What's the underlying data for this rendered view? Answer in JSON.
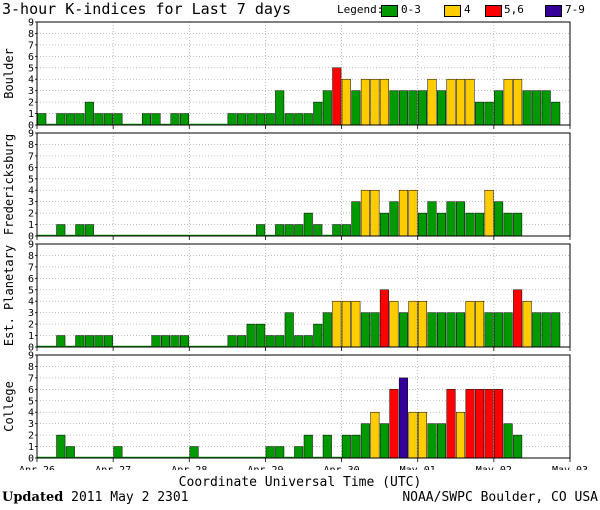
{
  "title": "3-hour K-indices for Last 7 days",
  "legend": {
    "label": "Legend:",
    "items": [
      {
        "label": "0-3",
        "color": "#009900"
      },
      {
        "label": "4",
        "color": "#ffcc00"
      },
      {
        "label": "5,6",
        "color": "#ff0000"
      },
      {
        "label": "7-9",
        "color": "#330099"
      }
    ]
  },
  "footer": {
    "updated_label": "Updated",
    "updated_value": "2011 May  2 2301",
    "source": "NOAA/SWPC Boulder, CO USA"
  },
  "chart_data": {
    "type": "bar",
    "xlabel": "Coordinate Universal Time (UTC)",
    "x_ticks": [
      "Apr 26",
      "Apr 27",
      "Apr 28",
      "Apr 29",
      "Apr 30",
      "May 01",
      "May 02",
      "May 03"
    ],
    "ylim": [
      0,
      9
    ],
    "y_ticks": [
      0,
      1,
      2,
      3,
      4,
      5,
      6,
      7,
      8,
      9
    ],
    "interval_hours": 3,
    "bins": 56,
    "color_scale": [
      {
        "range": "0-3",
        "color": "#009900"
      },
      {
        "range": "4",
        "color": "#ffcc00"
      },
      {
        "range": "5,6",
        "color": "#ff0000"
      },
      {
        "range": "7-9",
        "color": "#330099"
      }
    ],
    "panels": [
      {
        "name": "Boulder",
        "values": [
          1,
          0,
          1,
          1,
          1,
          2,
          1,
          1,
          1,
          0,
          0,
          1,
          1,
          0,
          1,
          1,
          0,
          0,
          0,
          0,
          1,
          1,
          1,
          1,
          1,
          3,
          1,
          1,
          1,
          2,
          3,
          5,
          4,
          3,
          4,
          4,
          4,
          3,
          3,
          3,
          3,
          4,
          3,
          4,
          4,
          4,
          2,
          2,
          3,
          4,
          4,
          3,
          3,
          3,
          2,
          null
        ]
      },
      {
        "name": "Fredericksburg",
        "values": [
          0,
          0,
          1,
          0,
          1,
          1,
          0,
          0,
          0,
          0,
          0,
          0,
          0,
          0,
          0,
          0,
          0,
          0,
          0,
          0,
          0,
          0,
          0,
          1,
          0,
          1,
          1,
          1,
          2,
          1,
          0,
          1,
          1,
          3,
          4,
          4,
          2,
          3,
          4,
          4,
          2,
          3,
          2,
          3,
          3,
          2,
          2,
          4,
          3,
          2,
          2,
          null,
          null,
          null,
          null,
          null
        ]
      },
      {
        "name": "Est. Planetary",
        "values": [
          0,
          0,
          1,
          0,
          1,
          1,
          1,
          1,
          0,
          0,
          0,
          0,
          1,
          1,
          1,
          1,
          0,
          0,
          0,
          0,
          1,
          1,
          2,
          2,
          1,
          1,
          3,
          1,
          1,
          2,
          3,
          4,
          4,
          4,
          3,
          3,
          5,
          4,
          3,
          4,
          4,
          3,
          3,
          3,
          3,
          4,
          4,
          3,
          3,
          3,
          5,
          4,
          3,
          3,
          3,
          null
        ]
      },
      {
        "name": "College",
        "values": [
          0,
          0,
          2,
          1,
          0,
          0,
          0,
          0,
          1,
          0,
          0,
          0,
          0,
          0,
          0,
          0,
          1,
          0,
          0,
          0,
          0,
          0,
          0,
          0,
          1,
          1,
          0,
          1,
          2,
          0,
          2,
          0,
          2,
          2,
          3,
          4,
          3,
          6,
          7,
          4,
          4,
          3,
          3,
          6,
          4,
          6,
          6,
          6,
          6,
          3,
          2,
          null,
          null,
          null,
          null,
          null
        ]
      }
    ]
  }
}
